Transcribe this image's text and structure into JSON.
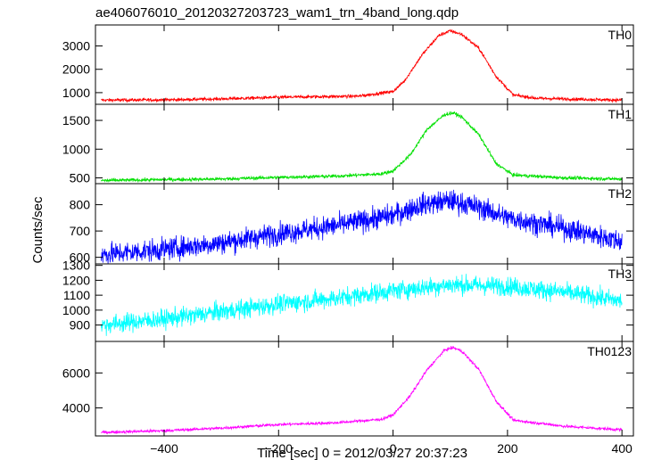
{
  "title": "ae406076010_20120327203723_wam1_trn_4band_long.qdp",
  "chart_data": {
    "type": "line",
    "title": "ae406076010_20120327203723_wam1_trn_4band_long.qdp",
    "xlabel": "Time [sec] 0 = 2012/03/27 20:37:23",
    "ylabel": "Counts/sec",
    "xlim": [
      -520,
      420
    ],
    "x_ticks": [
      -400,
      -200,
      0,
      200,
      400
    ],
    "x_tick_labels": [
      "−400",
      "−200",
      "0",
      "200",
      "400"
    ],
    "grid": false,
    "panels": [
      {
        "name": "TH0",
        "color": "#ff0000",
        "ylim": [
          500,
          3900
        ],
        "y_ticks": [
          1000,
          2000,
          3000
        ],
        "y_tick_labels": [
          "1000",
          "2000",
          "3000"
        ],
        "profile": [
          [
            -510,
            680
          ],
          [
            -400,
            690
          ],
          [
            -300,
            730
          ],
          [
            -200,
            800
          ],
          [
            -120,
            830
          ],
          [
            -60,
            850
          ],
          [
            0,
            1050
          ],
          [
            20,
            1500
          ],
          [
            50,
            2600
          ],
          [
            80,
            3450
          ],
          [
            100,
            3650
          ],
          [
            120,
            3500
          ],
          [
            150,
            2900
          ],
          [
            180,
            1700
          ],
          [
            210,
            900
          ],
          [
            250,
            760
          ],
          [
            300,
            730
          ],
          [
            400,
            680
          ]
        ],
        "noise": 50
      },
      {
        "name": "TH1",
        "color": "#00e000",
        "ylim": [
          400,
          1780
        ],
        "y_ticks": [
          500,
          1000,
          1500
        ],
        "y_tick_labels": [
          "500",
          "1000",
          "1500"
        ],
        "profile": [
          [
            -510,
            455
          ],
          [
            -400,
            470
          ],
          [
            -300,
            480
          ],
          [
            -200,
            510
          ],
          [
            -100,
            530
          ],
          [
            -20,
            570
          ],
          [
            0,
            620
          ],
          [
            30,
            900
          ],
          [
            60,
            1350
          ],
          [
            90,
            1600
          ],
          [
            105,
            1630
          ],
          [
            120,
            1560
          ],
          [
            150,
            1250
          ],
          [
            180,
            750
          ],
          [
            210,
            550
          ],
          [
            300,
            500
          ],
          [
            400,
            480
          ]
        ],
        "noise": 22
      },
      {
        "name": "TH2",
        "color": "#0000ff",
        "ylim": [
          575,
          880
        ],
        "y_ticks": [
          600,
          700,
          800
        ],
        "y_tick_labels": [
          "600",
          "700",
          "800"
        ],
        "profile": [
          [
            -510,
            610
          ],
          [
            -400,
            630
          ],
          [
            -300,
            655
          ],
          [
            -200,
            690
          ],
          [
            -100,
            720
          ],
          [
            0,
            760
          ],
          [
            50,
            800
          ],
          [
            100,
            815
          ],
          [
            150,
            790
          ],
          [
            200,
            750
          ],
          [
            300,
            710
          ],
          [
            400,
            660
          ]
        ],
        "noise": 30
      },
      {
        "name": "TH3",
        "color": "#00ffff",
        "ylim": [
          790,
          1310
        ],
        "y_ticks": [
          900,
          1000,
          1100,
          1200,
          1300
        ],
        "y_tick_labels": [
          "900",
          "1000",
          "1100",
          "1200",
          "1300"
        ],
        "profile": [
          [
            -510,
            900
          ],
          [
            -400,
            940
          ],
          [
            -300,
            990
          ],
          [
            -200,
            1040
          ],
          [
            -100,
            1080
          ],
          [
            0,
            1130
          ],
          [
            100,
            1170
          ],
          [
            200,
            1160
          ],
          [
            300,
            1120
          ],
          [
            400,
            1060
          ]
        ],
        "noise": 45
      },
      {
        "name": "TH0123",
        "color": "#ff00ff",
        "ylim": [
          2400,
          7800
        ],
        "y_ticks": [
          4000,
          6000
        ],
        "y_tick_labels": [
          "4000",
          "6000"
        ],
        "profile": [
          [
            -510,
            2600
          ],
          [
            -400,
            2700
          ],
          [
            -300,
            2850
          ],
          [
            -200,
            3050
          ],
          [
            -100,
            3150
          ],
          [
            -20,
            3350
          ],
          [
            0,
            3600
          ],
          [
            30,
            4700
          ],
          [
            60,
            6200
          ],
          [
            90,
            7300
          ],
          [
            105,
            7450
          ],
          [
            120,
            7250
          ],
          [
            150,
            6200
          ],
          [
            180,
            4400
          ],
          [
            210,
            3300
          ],
          [
            300,
            2950
          ],
          [
            400,
            2750
          ]
        ],
        "noise": 60
      }
    ]
  }
}
